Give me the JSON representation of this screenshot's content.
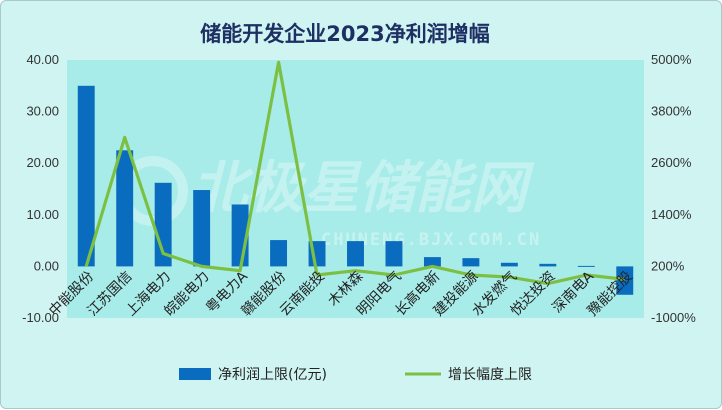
{
  "watermark": {
    "main": "北极星储能网",
    "sub": "CHUNENG.BJX.COM.CN"
  },
  "colors": {
    "bar": "#0a6cbf",
    "line": "#7cc043",
    "plot_bg": "#a8ece9",
    "frame_bg": "#cff4f2"
  },
  "chart_data": {
    "type": "bar",
    "title": "储能开发企业2023净利润增幅",
    "categories": [
      "中能股份",
      "江苏国信",
      "上海电力",
      "皖能电力",
      "粤电力A",
      "赣能股份",
      "云南能投",
      "木林森",
      "明阳电气",
      "长高电新",
      "建投能源",
      "水发燃气",
      "悦达投资",
      "深南电A",
      "豫能控股"
    ],
    "series": [
      {
        "name": "净利润上限(亿元)",
        "type": "bar",
        "axis": "left",
        "values": [
          35.0,
          22.5,
          16.2,
          14.8,
          12.0,
          5.1,
          4.9,
          4.9,
          4.9,
          1.8,
          1.6,
          0.7,
          0.5,
          0.1,
          -5.5
        ]
      },
      {
        "name": "增长幅度上限",
        "type": "line",
        "axis": "right",
        "values": [
          200,
          3200,
          500,
          200,
          100,
          4950,
          0,
          100,
          0,
          200,
          0,
          -50,
          -200,
          0,
          -100
        ]
      }
    ],
    "y_left": {
      "min": -10,
      "max": 40,
      "ticks": [
        "-10.00",
        "0.00",
        "10.00",
        "20.00",
        "30.00",
        "40.00"
      ]
    },
    "y_right": {
      "min": -1000,
      "max": 5000,
      "ticks": [
        "-1000%",
        "200%",
        "1400%",
        "2600%",
        "3800%",
        "5000%"
      ]
    },
    "legend_position": "bottom",
    "grid": false
  }
}
